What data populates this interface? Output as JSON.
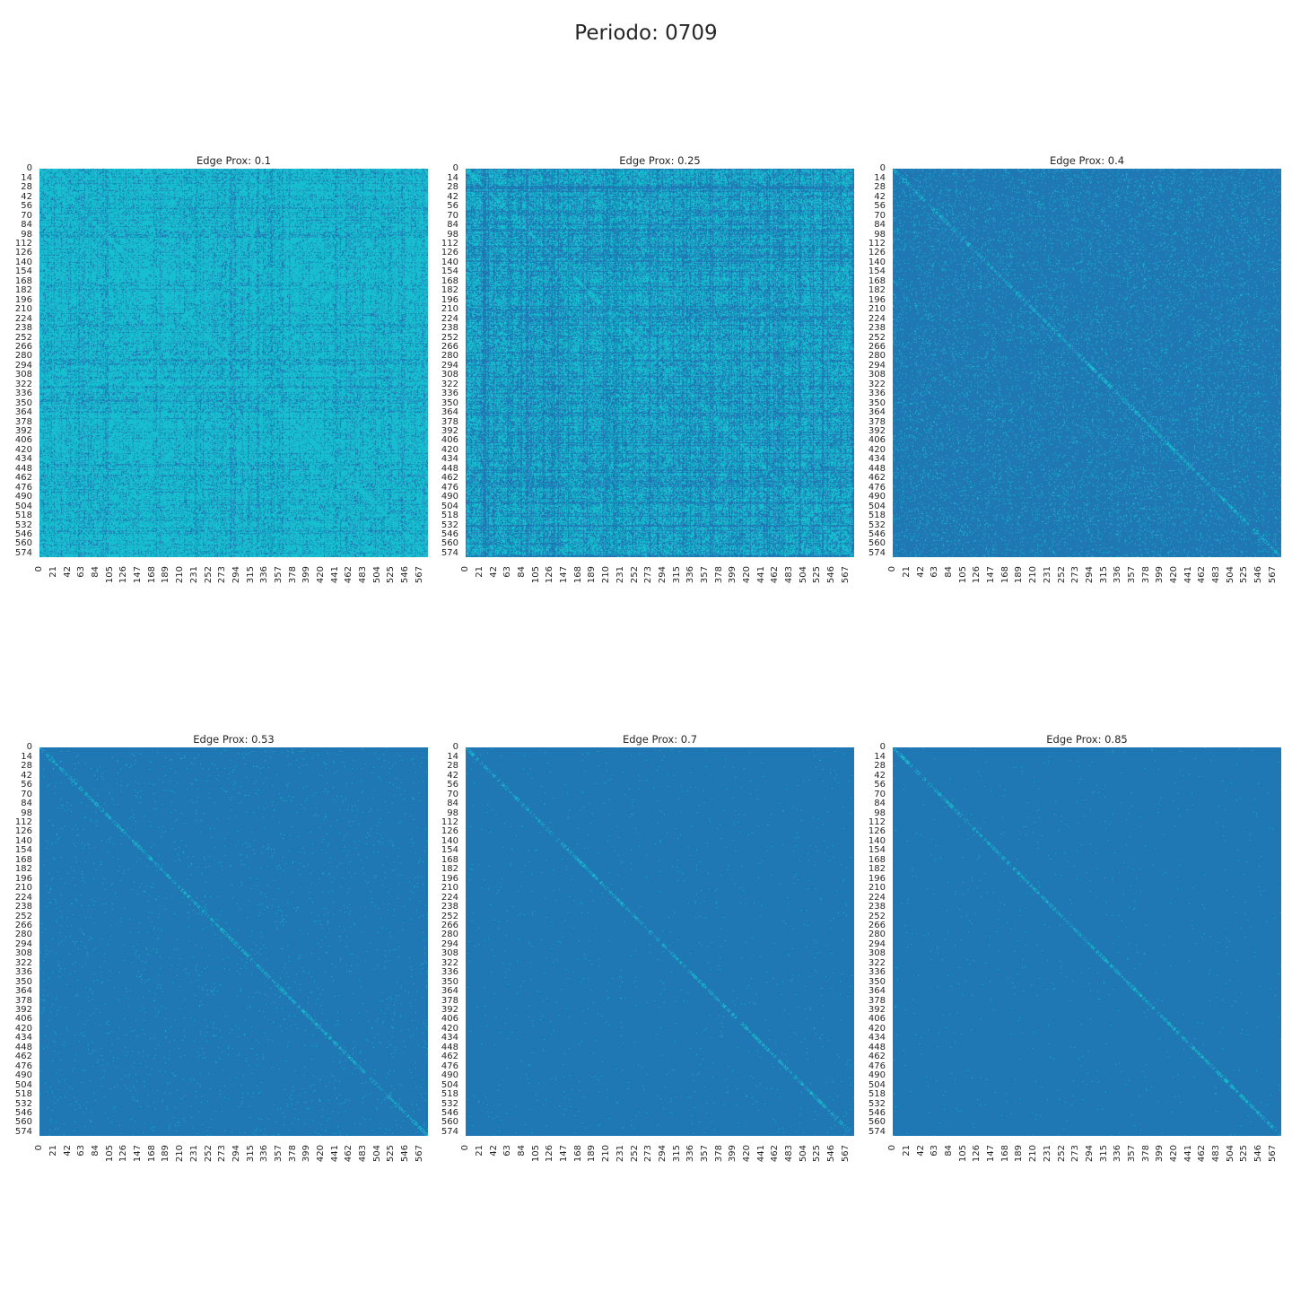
{
  "figure": {
    "title": "Periodo: 0709"
  },
  "colors": {
    "absent": "#1f77b4",
    "present": "#17becf"
  },
  "chart_data": [
    {
      "type": "heatmap",
      "title": "Edge Prox: 0.1",
      "matrix_size": 580,
      "cell_values": [
        0,
        1
      ],
      "present_density": 0.75,
      "y_tick_labels": [
        "0",
        "14",
        "28",
        "42",
        "56",
        "70",
        "84",
        "98",
        "112",
        "126",
        "140",
        "154",
        "168",
        "182",
        "196",
        "210",
        "224",
        "238",
        "252",
        "266",
        "280",
        "294",
        "308",
        "322",
        "336",
        "350",
        "364",
        "378",
        "392",
        "406",
        "420",
        "434",
        "448",
        "462",
        "476",
        "490",
        "504",
        "518",
        "532",
        "546",
        "560",
        "574"
      ],
      "x_tick_labels": [
        "0",
        "21",
        "42",
        "63",
        "84",
        "105",
        "126",
        "147",
        "168",
        "189",
        "210",
        "231",
        "252",
        "273",
        "294",
        "315",
        "336",
        "357",
        "378",
        "399",
        "420",
        "441",
        "462",
        "483",
        "504",
        "525",
        "546",
        "567"
      ],
      "colorbar": false
    },
    {
      "type": "heatmap",
      "title": "Edge Prox: 0.25",
      "matrix_size": 580,
      "cell_values": [
        0,
        1
      ],
      "present_density": 0.3,
      "y_tick_labels": [
        "0",
        "14",
        "28",
        "42",
        "56",
        "70",
        "84",
        "98",
        "112",
        "126",
        "140",
        "154",
        "168",
        "182",
        "196",
        "210",
        "224",
        "238",
        "252",
        "266",
        "280",
        "294",
        "308",
        "322",
        "336",
        "350",
        "364",
        "378",
        "392",
        "406",
        "420",
        "434",
        "448",
        "462",
        "476",
        "490",
        "504",
        "518",
        "532",
        "546",
        "560",
        "574"
      ],
      "x_tick_labels": [
        "0",
        "21",
        "42",
        "63",
        "84",
        "105",
        "126",
        "147",
        "168",
        "189",
        "210",
        "231",
        "252",
        "273",
        "294",
        "315",
        "336",
        "357",
        "378",
        "399",
        "420",
        "441",
        "462",
        "483",
        "504",
        "525",
        "546",
        "567"
      ],
      "colorbar": false
    },
    {
      "type": "heatmap",
      "title": "Edge Prox: 0.4",
      "matrix_size": 580,
      "cell_values": [
        0,
        1
      ],
      "present_density": 0.06,
      "y_tick_labels": [
        "0",
        "14",
        "28",
        "42",
        "56",
        "70",
        "84",
        "98",
        "112",
        "126",
        "140",
        "154",
        "168",
        "182",
        "196",
        "210",
        "224",
        "238",
        "252",
        "266",
        "280",
        "294",
        "308",
        "322",
        "336",
        "350",
        "364",
        "378",
        "392",
        "406",
        "420",
        "434",
        "448",
        "462",
        "476",
        "490",
        "504",
        "518",
        "532",
        "546",
        "560",
        "574"
      ],
      "x_tick_labels": [
        "0",
        "21",
        "42",
        "63",
        "84",
        "105",
        "126",
        "147",
        "168",
        "189",
        "210",
        "231",
        "252",
        "273",
        "294",
        "315",
        "336",
        "357",
        "378",
        "399",
        "420",
        "441",
        "462",
        "483",
        "504",
        "525",
        "546",
        "567"
      ],
      "colorbar": false
    },
    {
      "type": "heatmap",
      "title": "Edge Prox: 0.53",
      "matrix_size": 580,
      "cell_values": [
        0,
        1
      ],
      "present_density": 0.01,
      "y_tick_labels": [
        "0",
        "14",
        "28",
        "42",
        "56",
        "70",
        "84",
        "98",
        "112",
        "126",
        "140",
        "154",
        "168",
        "182",
        "196",
        "210",
        "224",
        "238",
        "252",
        "266",
        "280",
        "294",
        "308",
        "322",
        "336",
        "350",
        "364",
        "378",
        "392",
        "406",
        "420",
        "434",
        "448",
        "462",
        "476",
        "490",
        "504",
        "518",
        "532",
        "546",
        "560",
        "574"
      ],
      "x_tick_labels": [
        "0",
        "21",
        "42",
        "63",
        "84",
        "105",
        "126",
        "147",
        "168",
        "189",
        "210",
        "231",
        "252",
        "273",
        "294",
        "315",
        "336",
        "357",
        "378",
        "399",
        "420",
        "441",
        "462",
        "483",
        "504",
        "525",
        "546",
        "567"
      ],
      "colorbar": false
    },
    {
      "type": "heatmap",
      "title": "Edge Prox: 0.7",
      "matrix_size": 580,
      "cell_values": [
        0,
        1
      ],
      "present_density": 0.004,
      "y_tick_labels": [
        "0",
        "14",
        "28",
        "42",
        "56",
        "70",
        "84",
        "98",
        "112",
        "126",
        "140",
        "154",
        "168",
        "182",
        "196",
        "210",
        "224",
        "238",
        "252",
        "266",
        "280",
        "294",
        "308",
        "322",
        "336",
        "350",
        "364",
        "378",
        "392",
        "406",
        "420",
        "434",
        "448",
        "462",
        "476",
        "490",
        "504",
        "518",
        "532",
        "546",
        "560",
        "574"
      ],
      "x_tick_labels": [
        "0",
        "21",
        "42",
        "63",
        "84",
        "105",
        "126",
        "147",
        "168",
        "189",
        "210",
        "231",
        "252",
        "273",
        "294",
        "315",
        "336",
        "357",
        "378",
        "399",
        "420",
        "441",
        "462",
        "483",
        "504",
        "525",
        "546",
        "567"
      ],
      "colorbar": false
    },
    {
      "type": "heatmap",
      "title": "Edge Prox: 0.85",
      "matrix_size": 580,
      "cell_values": [
        0,
        1
      ],
      "present_density": 0.003,
      "y_tick_labels": [
        "0",
        "14",
        "28",
        "42",
        "56",
        "70",
        "84",
        "98",
        "112",
        "126",
        "140",
        "154",
        "168",
        "182",
        "196",
        "210",
        "224",
        "238",
        "252",
        "266",
        "280",
        "294",
        "308",
        "322",
        "336",
        "350",
        "364",
        "378",
        "392",
        "406",
        "420",
        "434",
        "448",
        "462",
        "476",
        "490",
        "504",
        "518",
        "532",
        "546",
        "560",
        "574"
      ],
      "x_tick_labels": [
        "0",
        "21",
        "42",
        "63",
        "84",
        "105",
        "126",
        "147",
        "168",
        "189",
        "210",
        "231",
        "252",
        "273",
        "294",
        "315",
        "336",
        "357",
        "378",
        "399",
        "420",
        "441",
        "462",
        "483",
        "504",
        "525",
        "546",
        "567"
      ],
      "colorbar": false
    }
  ]
}
